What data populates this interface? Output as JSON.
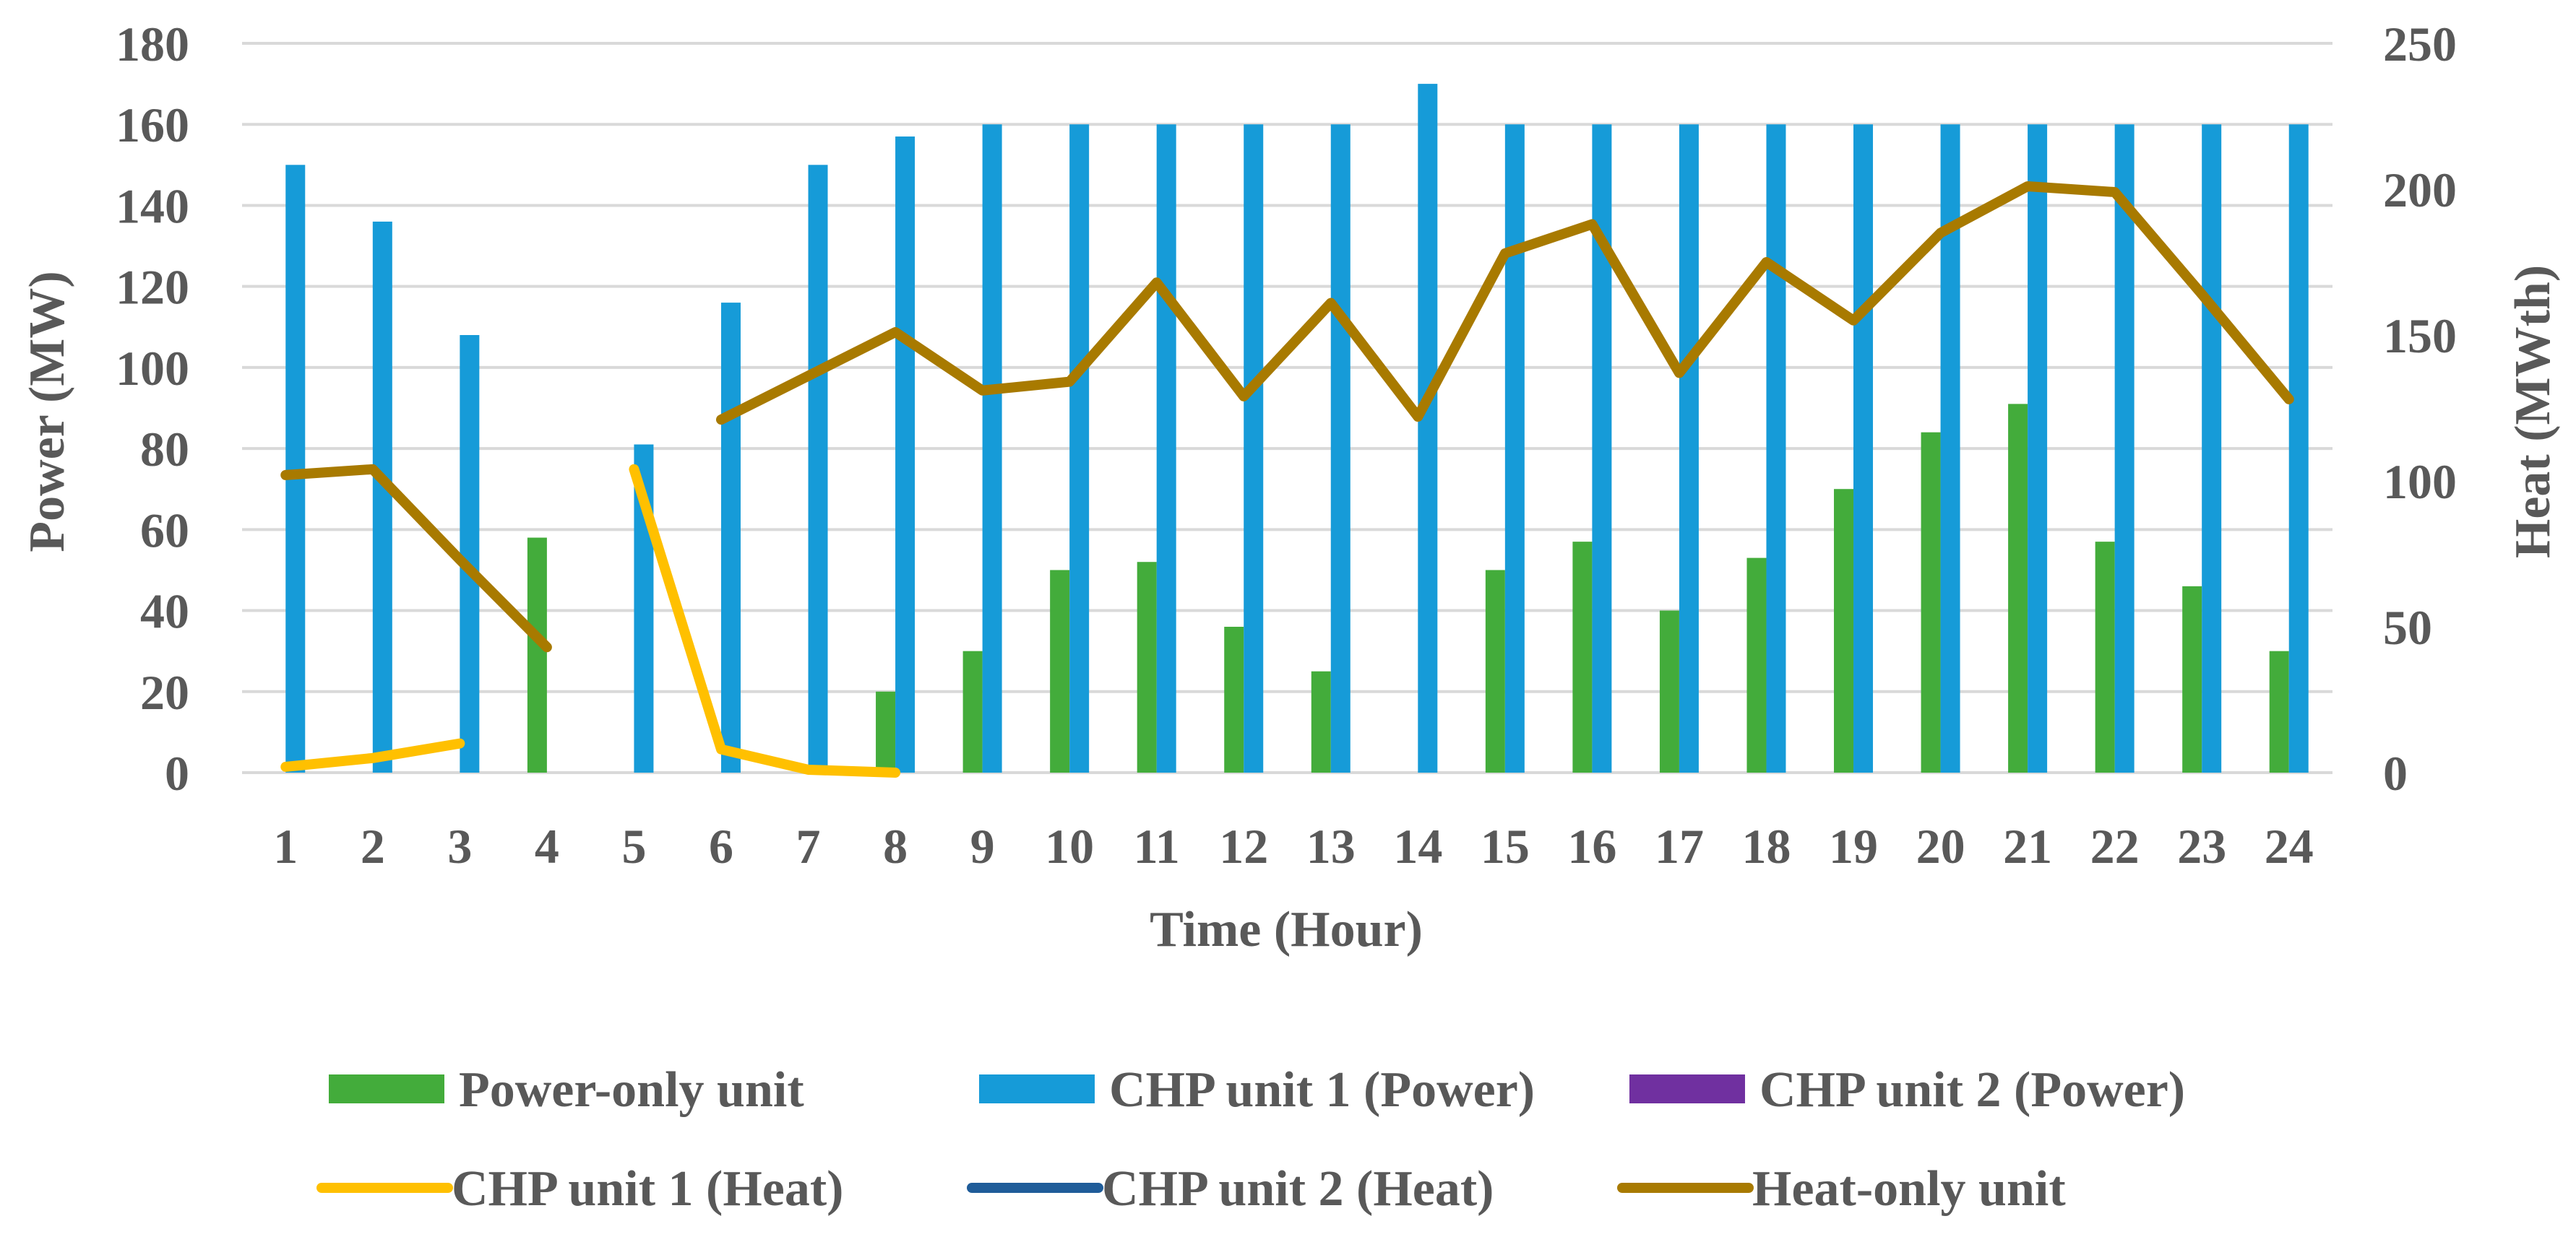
{
  "chart_data": {
    "type": "bar",
    "title": "",
    "xlabel": "Time (Hour)",
    "ylabel": "Power (MW)",
    "y2label": "Heat (MWth)",
    "ylim": [
      0,
      180
    ],
    "y2lim": [
      0,
      250
    ],
    "yticks": [
      "0",
      "20",
      "40",
      "60",
      "80",
      "100",
      "120",
      "140",
      "160",
      "180"
    ],
    "y2ticks": [
      "0",
      "50",
      "100",
      "150",
      "200",
      "250"
    ],
    "grid": true,
    "legend_position": "bottom",
    "categories": [
      "1",
      "2",
      "3",
      "4",
      "5",
      "6",
      "7",
      "8",
      "9",
      "10",
      "11",
      "12",
      "13",
      "14",
      "15",
      "16",
      "17",
      "18",
      "19",
      "20",
      "21",
      "22",
      "23",
      "24"
    ],
    "bar_series": [
      {
        "name": "Power-only unit",
        "axis": "left",
        "color": "#43ac3b",
        "values": [
          0,
          0,
          0,
          58,
          0,
          0,
          0,
          20,
          30,
          50,
          52,
          36,
          25,
          0,
          50,
          57,
          40,
          53,
          70,
          84,
          91,
          57,
          46,
          30
        ]
      },
      {
        "name": "CHP unit 1 (Power)",
        "axis": "left",
        "color": "#169bd8",
        "values": [
          150,
          136,
          108,
          0,
          81,
          116,
          150,
          157,
          160,
          160,
          160,
          160,
          160,
          170,
          160,
          160,
          160,
          160,
          160,
          160,
          160,
          160,
          160,
          160
        ]
      },
      {
        "name": "CHP unit 2 (Power)",
        "axis": "left",
        "color": "#7030a0",
        "values": [
          0,
          0,
          0,
          0,
          0,
          0,
          0,
          0,
          0,
          0,
          0,
          0,
          0,
          0,
          0,
          0,
          0,
          0,
          0,
          0,
          0,
          0,
          0,
          0
        ]
      }
    ],
    "line_series": [
      {
        "name": "CHP unit 1 (Heat)",
        "axis": "right",
        "color": "#ffc000",
        "values": [
          2,
          5,
          10,
          null,
          104,
          8,
          1,
          0,
          null,
          null,
          null,
          null,
          null,
          null,
          null,
          null,
          null,
          null,
          null,
          null,
          null,
          null,
          null,
          null
        ]
      },
      {
        "name": "CHP unit 2 (Heat)",
        "axis": "right",
        "color": "#1f5c99",
        "values": [
          null,
          null,
          null,
          null,
          null,
          null,
          null,
          null,
          null,
          null,
          null,
          null,
          null,
          null,
          null,
          null,
          null,
          null,
          null,
          null,
          null,
          null,
          null,
          null
        ]
      },
      {
        "name": "Heat-only unit",
        "axis": "right",
        "color": "#a87a00",
        "values": [
          102,
          104,
          73,
          43,
          null,
          121,
          136,
          151,
          131,
          134,
          168,
          129,
          161,
          122,
          178,
          188,
          137,
          175,
          155,
          185,
          201,
          199,
          164,
          128
        ]
      }
    ],
    "legend": [
      "Power-only unit",
      "CHP unit 1 (Power)",
      "CHP unit 2 (Power)",
      "CHP unit 1 (Heat)",
      "CHP unit 2 (Heat)",
      "Heat-only unit"
    ]
  }
}
